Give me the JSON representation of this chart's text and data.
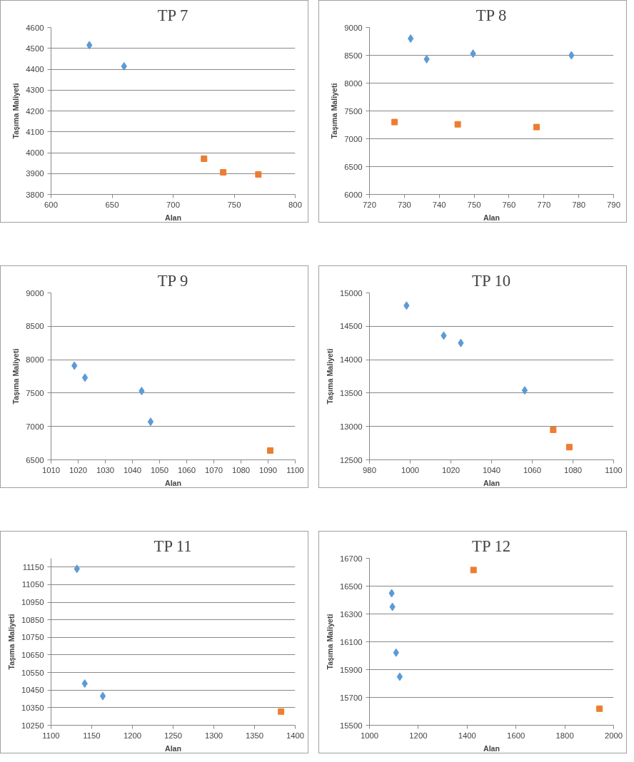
{
  "chart_data": [
    {
      "type": "scatter",
      "title": "TP 7",
      "xlabel": "Alan",
      "ylabel": "Taşıma Maliyeti",
      "xlim": [
        600,
        800
      ],
      "xticks": [
        600,
        650,
        700,
        750,
        800
      ],
      "ylim": [
        3800,
        4600
      ],
      "yticks": [
        3800,
        3900,
        4000,
        4100,
        4200,
        4300,
        4400,
        4500,
        4600
      ],
      "grid": "y",
      "series": [
        {
          "color": "#5b9bd5",
          "marker": "diamond",
          "x": [
            631.4,
            659.8
          ],
          "values": [
            4515,
            4414
          ]
        },
        {
          "color": "#ed7d31",
          "marker": "square",
          "x": [
            725.3,
            741,
            769.8
          ],
          "values": [
            3971,
            3906,
            3896
          ]
        }
      ]
    },
    {
      "type": "scatter",
      "title": "TP 8",
      "xlabel": "Alan",
      "ylabel": "Taşıma Maliyeti",
      "xlim": [
        720,
        790
      ],
      "xticks": [
        720,
        730,
        740,
        750,
        760,
        770,
        780,
        790
      ],
      "ylim": [
        6000,
        9000
      ],
      "yticks": [
        6000,
        6500,
        7000,
        7500,
        8000,
        8500,
        9000
      ],
      "grid": "y",
      "series": [
        {
          "color": "#5b9bd5",
          "marker": "diamond",
          "x": [
            731.8,
            736.4,
            749.7,
            777.9
          ],
          "values": [
            8800,
            8430,
            8530,
            8500
          ]
        },
        {
          "color": "#ed7d31",
          "marker": "square",
          "x": [
            727.2,
            745.3,
            767.9
          ],
          "values": [
            7300,
            7260,
            7210
          ]
        }
      ]
    },
    {
      "type": "scatter",
      "title": "TP 9",
      "xlabel": "Alan",
      "ylabel": "Taşıma Maliyeti",
      "xlim": [
        1010,
        1100
      ],
      "xticks": [
        1010,
        1020,
        1030,
        1040,
        1050,
        1060,
        1070,
        1080,
        1090,
        1100
      ],
      "ylim": [
        6500,
        9000
      ],
      "yticks": [
        6500,
        7000,
        7500,
        8000,
        8500,
        9000
      ],
      "grid": "y",
      "series": [
        {
          "color": "#5b9bd5",
          "marker": "diamond",
          "x": [
            1018.6,
            1022.5,
            1043.4,
            1046.7
          ],
          "values": [
            7910,
            7730,
            7530,
            7070
          ]
        },
        {
          "color": "#ed7d31",
          "marker": "square",
          "x": [
            1090.8
          ],
          "values": [
            6640
          ]
        }
      ]
    },
    {
      "type": "scatter",
      "title": "TP 10",
      "xlabel": "Alan",
      "ylabel": "Taşıma Maliyeti",
      "xlim": [
        980,
        1100
      ],
      "xticks": [
        980,
        1000,
        1020,
        1040,
        1060,
        1080,
        1100
      ],
      "ylim": [
        12500,
        15000
      ],
      "yticks": [
        12500,
        13000,
        13500,
        14000,
        14500,
        15000
      ],
      "grid": "y",
      "series": [
        {
          "color": "#5b9bd5",
          "marker": "diamond",
          "x": [
            998.2,
            1016.5,
            1024.9,
            1056.3
          ],
          "values": [
            14810,
            14360,
            14250,
            13540
          ]
        },
        {
          "color": "#ed7d31",
          "marker": "square",
          "x": [
            1070.3,
            1078.2
          ],
          "values": [
            12950,
            12690
          ]
        }
      ]
    },
    {
      "type": "scatter",
      "title": "TP 11",
      "xlabel": "Alan",
      "ylabel": "Taşıma Maliyeti",
      "xlim": [
        1100,
        1400
      ],
      "xticks": [
        1100,
        1150,
        1200,
        1250,
        1300,
        1350,
        1400
      ],
      "ylim": [
        10250,
        11200
      ],
      "yticks": [
        10250,
        10350,
        10450,
        10550,
        10650,
        10750,
        10850,
        10950,
        11050,
        11150
      ],
      "grid": "y",
      "series": [
        {
          "color": "#5b9bd5",
          "marker": "diamond",
          "x": [
            1131.8,
            1141.4,
            1163.6
          ],
          "values": [
            11140,
            10487,
            10416
          ]
        },
        {
          "color": "#ed7d31",
          "marker": "square",
          "x": [
            1382.6
          ],
          "values": [
            10328
          ]
        }
      ]
    },
    {
      "type": "scatter",
      "title": "TP 12",
      "xlabel": "Alan",
      "ylabel": "Taşıma Maliyeti",
      "xlim": [
        1000,
        2000
      ],
      "xticks": [
        1000,
        1200,
        1400,
        1600,
        1800,
        2000
      ],
      "ylim": [
        15500,
        16700
      ],
      "yticks": [
        15500,
        15700,
        15900,
        16100,
        16300,
        16500,
        16700
      ],
      "grid": "y",
      "series": [
        {
          "color": "#5b9bd5",
          "marker": "diamond",
          "x": [
            1091,
            1094,
            1109,
            1124
          ],
          "values": [
            16449,
            16351,
            16022,
            15849
          ]
        },
        {
          "color": "#ed7d31",
          "marker": "square",
          "x": [
            1426,
            1942
          ],
          "values": [
            16616,
            15619
          ]
        }
      ]
    }
  ]
}
